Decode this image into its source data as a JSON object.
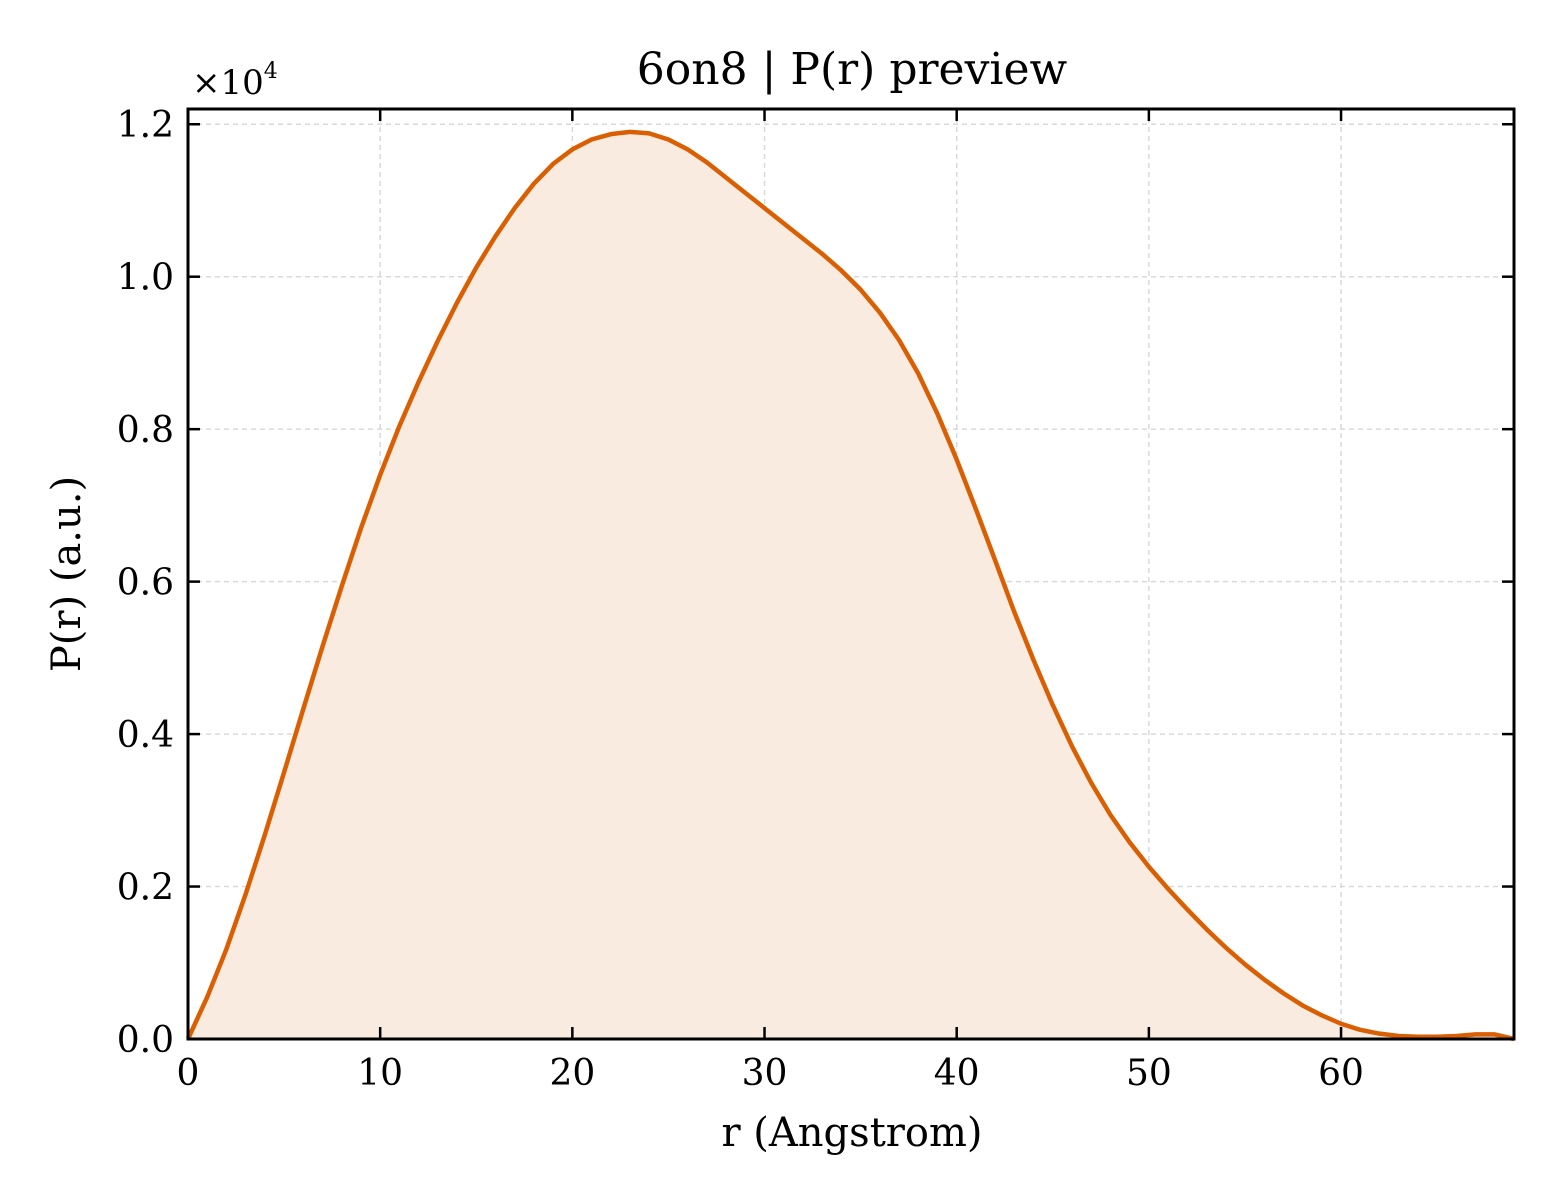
{
  "chart_data": {
    "type": "area",
    "title": "6on8 | P(r) preview",
    "xlabel": "r (Angstrom)",
    "ylabel": "P(r) (a.u.)",
    "y_multiplier_base": "×10",
    "y_multiplier_exponent": "4",
    "xlim": [
      0,
      69
    ],
    "ylim": [
      0,
      1.22
    ],
    "x_ticks": [
      0,
      10,
      20,
      30,
      40,
      50,
      60
    ],
    "x_tick_labels": [
      "0",
      "10",
      "20",
      "30",
      "40",
      "50",
      "60"
    ],
    "y_ticks": [
      0,
      0.2,
      0.4,
      0.6,
      0.8,
      1.0,
      1.2
    ],
    "y_tick_labels": [
      "0.0",
      "0.2",
      "0.4",
      "0.6",
      "0.8",
      "1.0",
      "1.2"
    ],
    "grid": true,
    "line_color": "#d95f02",
    "fill_color": "#f9ebe0",
    "series": [
      {
        "x": [
          0,
          1,
          2,
          3,
          4,
          5,
          6,
          7,
          8,
          9,
          10,
          11,
          12,
          13,
          14,
          15,
          16,
          17,
          18,
          19,
          20,
          21,
          22,
          23,
          24,
          25,
          26,
          27,
          28,
          29,
          30,
          31,
          32,
          33,
          34,
          35,
          36,
          37,
          38,
          39,
          40,
          41,
          42,
          43,
          44,
          45,
          46,
          47,
          48,
          49,
          50,
          51,
          52,
          53,
          54,
          55,
          56,
          57,
          58,
          59,
          60,
          61,
          62,
          63,
          64,
          65,
          66,
          67,
          68,
          69
        ],
        "values": [
          0.0,
          0.055,
          0.118,
          0.19,
          0.268,
          0.35,
          0.433,
          0.515,
          0.594,
          0.67,
          0.74,
          0.804,
          0.862,
          0.916,
          0.966,
          1.012,
          1.053,
          1.09,
          1.122,
          1.148,
          1.167,
          1.18,
          1.187,
          1.19,
          1.188,
          1.18,
          1.167,
          1.15,
          1.13,
          1.11,
          1.09,
          1.07,
          1.05,
          1.03,
          1.008,
          0.983,
          0.953,
          0.917,
          0.873,
          0.82,
          0.76,
          0.695,
          0.628,
          0.56,
          0.497,
          0.438,
          0.384,
          0.336,
          0.294,
          0.258,
          0.226,
          0.197,
          0.17,
          0.144,
          0.12,
          0.098,
          0.078,
          0.06,
          0.044,
          0.031,
          0.02,
          0.012,
          0.007,
          0.004,
          0.003,
          0.003,
          0.004,
          0.006,
          0.006,
          0.0
        ]
      }
    ]
  }
}
